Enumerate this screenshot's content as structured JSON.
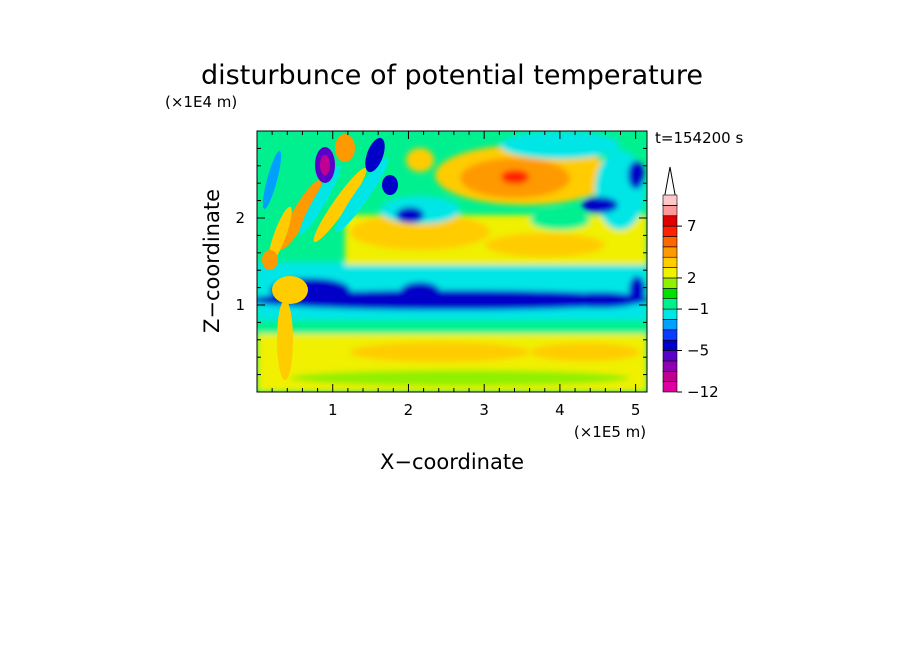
{
  "chart_data": {
    "type": "heatmap",
    "title": "disturbunce of potential temperature",
    "xlabel": "X−coordinate",
    "ylabel": "Z−coordinate",
    "x_unit": "(×1E5 m)",
    "y_unit": "(×1E4 m)",
    "time_label": "t=154200 s",
    "xlim": [
      0,
      5.15
    ],
    "ylim": [
      0,
      3
    ],
    "x_ticks": [
      1,
      2,
      3,
      4,
      5
    ],
    "y_ticks": [
      1,
      2
    ],
    "colorbar": {
      "levels": [
        -12,
        -10,
        -8,
        -6,
        -5,
        -4,
        -3,
        -2,
        -1,
        0,
        1,
        2,
        3,
        4,
        5,
        6,
        7,
        8,
        9,
        10
      ],
      "labeled_ticks": [
        "−12",
        "−5",
        "−1",
        "2",
        "7"
      ],
      "colors": [
        "#e000a0",
        "#c00090",
        "#9000b0",
        "#5a00c8",
        "#0000c8",
        "#0a3cff",
        "#00a0ff",
        "#00e6e6",
        "#00f090",
        "#00e000",
        "#90f000",
        "#f0f000",
        "#ffcc00",
        "#ff9900",
        "#ff6600",
        "#ff2200",
        "#e00000",
        "#ff9999",
        "#ffc8c8"
      ]
    },
    "features": [
      {
        "x": 3.35,
        "z": 2.5,
        "value": 8
      },
      {
        "x": 1.2,
        "z": 1.35,
        "value": -5
      },
      {
        "x": 2.7,
        "z": 2.35,
        "value": 5
      },
      {
        "x": 0.9,
        "z": 2.6,
        "value": -8
      },
      {
        "x": 4.2,
        "z": 0.45,
        "value": 3
      }
    ]
  }
}
